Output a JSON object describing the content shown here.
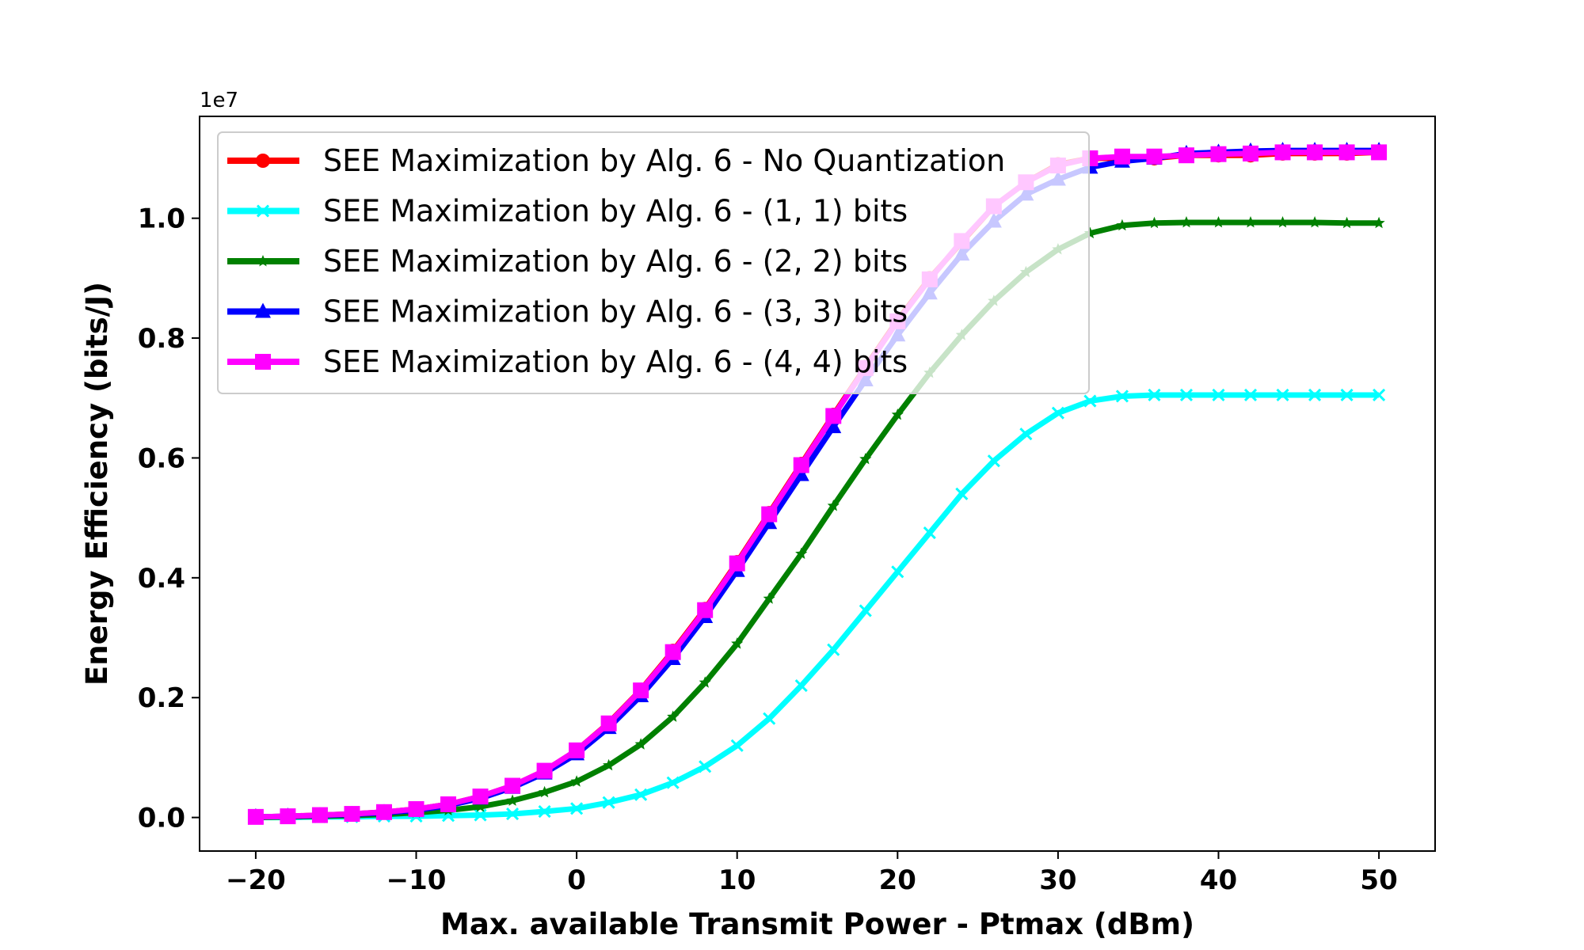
{
  "chart_data": {
    "type": "line",
    "title": "",
    "xlabel": "Max. available Transmit Power - Ptmax (dBm)",
    "ylabel": "Energy Efficiency (bits/J)",
    "y_offset_label": "1e7",
    "xlim": [
      -23.5,
      53.5
    ],
    "ylim": [
      -0.056,
      1.17
    ],
    "xticks": [
      -20,
      -10,
      0,
      10,
      20,
      30,
      40,
      50
    ],
    "xtick_labels": [
      "−20",
      "−10",
      "0",
      "10",
      "20",
      "30",
      "40",
      "50"
    ],
    "yticks": [
      0.0,
      0.2,
      0.4,
      0.6,
      0.8,
      1.0
    ],
    "ytick_labels": [
      "0.0",
      "0.2",
      "0.4",
      "0.6",
      "0.8",
      "1.0"
    ],
    "legend_position": "top-left",
    "grid": false,
    "x": [
      -20,
      -18,
      -16,
      -14,
      -12,
      -10,
      -8,
      -6,
      -4,
      -2,
      0,
      2,
      4,
      6,
      8,
      10,
      12,
      14,
      16,
      18,
      20,
      22,
      24,
      26,
      28,
      30,
      32,
      34,
      36,
      38,
      40,
      42,
      44,
      46,
      48,
      50
    ],
    "series": [
      {
        "name": "SEE Maximization by Alg. 6 - No Quantization",
        "color": "#ff0000",
        "marker": "circle",
        "values": [
          0.001,
          0.002,
          0.004,
          0.006,
          0.009,
          0.014,
          0.022,
          0.035,
          0.053,
          0.078,
          0.112,
          0.158,
          0.213,
          0.278,
          0.348,
          0.426,
          0.508,
          0.59,
          0.672,
          0.752,
          0.83,
          0.9,
          0.96,
          1.02,
          1.06,
          1.09,
          1.1,
          1.1,
          1.1,
          1.105,
          1.105,
          1.105,
          1.108,
          1.108,
          1.108,
          1.11
        ]
      },
      {
        "name": "SEE Maximization by Alg. 6 - (1, 1) bits",
        "color": "#00ffff",
        "marker": "x",
        "values": [
          0.0,
          0.0,
          0.001,
          0.001,
          0.002,
          0.002,
          0.003,
          0.004,
          0.006,
          0.01,
          0.015,
          0.025,
          0.038,
          0.058,
          0.085,
          0.12,
          0.165,
          0.22,
          0.28,
          0.345,
          0.41,
          0.475,
          0.54,
          0.595,
          0.64,
          0.675,
          0.695,
          0.703,
          0.705,
          0.705,
          0.705,
          0.705,
          0.705,
          0.705,
          0.705,
          0.705
        ]
      },
      {
        "name": "SEE Maximization by Alg. 6 - (2, 2) bits",
        "color": "#008000",
        "marker": "star",
        "values": [
          0.0,
          0.001,
          0.002,
          0.003,
          0.005,
          0.008,
          0.012,
          0.018,
          0.028,
          0.042,
          0.06,
          0.087,
          0.122,
          0.168,
          0.225,
          0.29,
          0.365,
          0.44,
          0.52,
          0.598,
          0.672,
          0.742,
          0.805,
          0.862,
          0.91,
          0.948,
          0.975,
          0.988,
          0.992,
          0.993,
          0.993,
          0.993,
          0.993,
          0.993,
          0.992,
          0.992
        ]
      },
      {
        "name": "SEE Maximization by Alg. 6 - (3, 3) bits",
        "color": "#0000ff",
        "marker": "triangle",
        "values": [
          0.001,
          0.002,
          0.003,
          0.005,
          0.008,
          0.012,
          0.02,
          0.032,
          0.05,
          0.074,
          0.106,
          0.15,
          0.203,
          0.265,
          0.335,
          0.412,
          0.492,
          0.572,
          0.652,
          0.73,
          0.805,
          0.875,
          0.94,
          0.995,
          1.04,
          1.065,
          1.085,
          1.095,
          1.1,
          1.108,
          1.11,
          1.112,
          1.113,
          1.113,
          1.113,
          1.113
        ]
      },
      {
        "name": "SEE Maximization by Alg. 6 - (4, 4) bits",
        "color": "#ff00ff",
        "marker": "square",
        "values": [
          0.001,
          0.002,
          0.004,
          0.006,
          0.009,
          0.014,
          0.022,
          0.035,
          0.053,
          0.078,
          0.112,
          0.157,
          0.212,
          0.276,
          0.346,
          0.424,
          0.506,
          0.588,
          0.67,
          0.75,
          0.828,
          0.898,
          0.962,
          1.02,
          1.06,
          1.088,
          1.1,
          1.103,
          1.103,
          1.105,
          1.107,
          1.108,
          1.11,
          1.11,
          1.11,
          1.11
        ]
      }
    ]
  }
}
